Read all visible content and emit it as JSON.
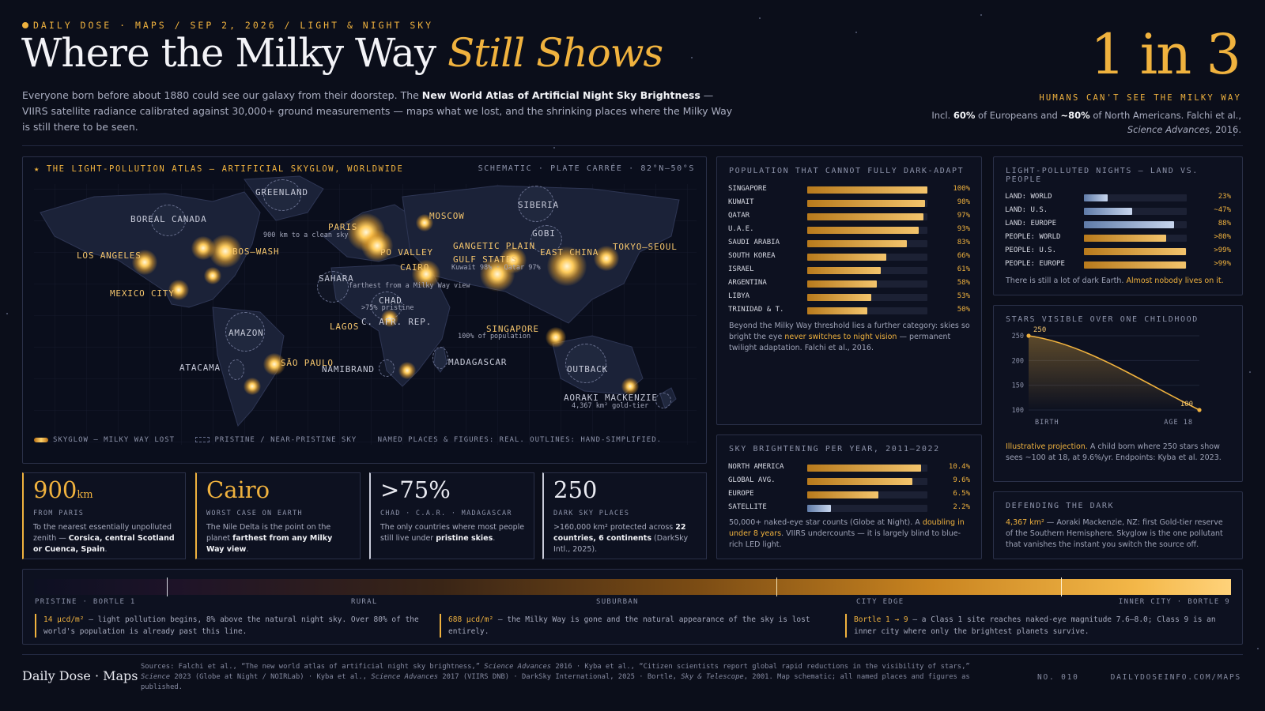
{
  "header": {
    "kicker": "DAILY DOSE · MAPS / SEP 2, 2026 / LIGHT & NIGHT SKY",
    "title_main": "Where the Milky Way ",
    "title_accent": "Still Shows",
    "lede_1": "Everyone born before about 1880 could see our galaxy from their doorstep. The ",
    "lede_bold": "New World Atlas of Artificial Night Sky Brightness",
    "lede_2": " — VIIRS satellite radiance calibrated against 30,000+ ground measurements — maps what we lost, and the shrinking places where the Milky Way is still there to be seen."
  },
  "headline_stat": {
    "value": "1 in 3",
    "caption": "HUMANS CAN'T SEE THE MILKY WAY",
    "note_1": "Incl. ",
    "note_p1": "60%",
    "note_2": " of Europeans and ",
    "note_p2": "~80%",
    "note_3": " of North Americans. Falchi et al.,",
    "note_journal": "Science Advances",
    "note_4": ", 2016."
  },
  "map": {
    "title": "★ THE LIGHT-POLLUTION ATLAS — ARTIFICIAL SKYGLOW, WORLDWIDE",
    "projection": "SCHEMATIC · PLATE CARRÉE · 82°N–50°S",
    "labels": {
      "greenland": "GREENLAND",
      "boreal": "BOREAL CANADA",
      "la": "LOS ANGELES",
      "boswash": "BOS–WASH",
      "mexico": "MEXICO CITY",
      "paris": "PARIS",
      "paris_sub": "900 km to a clean sky",
      "moscow": "MOSCOW",
      "siberia": "SIBERIA",
      "gobi": "GOBI",
      "po": "PO VALLEY",
      "cairo": "CAIRO",
      "ganges": "GANGETIC PLAIN",
      "gulf": "GULF STATES",
      "gulf_sub": "Kuwait 98% · Qatar 97%",
      "eastchina": "EAST CHINA",
      "tokyo": "TOKYO–SEOUL",
      "sahara": "SAHARA",
      "sahara_sub": "farthest from a Milky Way view",
      "chad": "CHAD",
      "chad_sub": ">75% pristine",
      "car": "C. AFR. REP.",
      "lagos": "LAGOS",
      "singapore": "SINGAPORE",
      "singapore_sub": "100% of population",
      "amazon": "AMAZON",
      "atacama": "ATACAMA",
      "saopaulo": "SÃO PAULO",
      "namib": "NAMIBRAND",
      "madagascar": "MADAGASCAR",
      "outback": "OUTBACK",
      "aoraki": "AORAKI MACKENZIE",
      "aoraki_sub": "4,367 km² gold-tier"
    },
    "legend_glow": "SKYGLOW — MILKY WAY LOST",
    "legend_pristine": "PRISTINE / NEAR-PRISTINE SKY",
    "legend_note": "NAMED PLACES & FIGURES: REAL. OUTLINES: HAND-SIMPLIFIED."
  },
  "cards": [
    {
      "value": "900",
      "unit": "km",
      "caption": "FROM PARIS",
      "t1": "To the nearest essentially unpolluted zenith — ",
      "b1": "Corsica, central Scotland or Cuenca, Spain",
      "t2": "."
    },
    {
      "value": "Cairo",
      "unit": "",
      "caption": "WORST CASE ON EARTH",
      "t1": "The Nile Delta is the point on the planet ",
      "b1": "farthest from any Milky Way view",
      "t2": "."
    },
    {
      "value": ">75%",
      "unit": "",
      "caption": "CHAD · C.A.R. · MADAGASCAR",
      "t1": "The only countries where most people still live under ",
      "b1": "pristine skies",
      "t2": "."
    },
    {
      "value": "250",
      "unit": "",
      "caption": "DARK SKY PLACES",
      "t1": ">160,000 km² protected across ",
      "b1": "22 countries, 6 continents",
      "t2": " (DarkSky Intl., 2025)."
    }
  ],
  "population": {
    "title": "POPULATION THAT CANNOT FULLY DARK-ADAPT",
    "rows": [
      {
        "label": "SINGAPORE",
        "value": 100,
        "display": "100%"
      },
      {
        "label": "KUWAIT",
        "value": 98,
        "display": "98%"
      },
      {
        "label": "QATAR",
        "value": 97,
        "display": "97%"
      },
      {
        "label": "U.A.E.",
        "value": 93,
        "display": "93%"
      },
      {
        "label": "SAUDI ARABIA",
        "value": 83,
        "display": "83%"
      },
      {
        "label": "SOUTH KOREA",
        "value": 66,
        "display": "66%"
      },
      {
        "label": "ISRAEL",
        "value": 61,
        "display": "61%"
      },
      {
        "label": "ARGENTINA",
        "value": 58,
        "display": "58%"
      },
      {
        "label": "LIBYA",
        "value": 53,
        "display": "53%"
      },
      {
        "label": "TRINIDAD & T.",
        "value": 50,
        "display": "50%"
      }
    ],
    "note_1": "Beyond the Milky Way threshold lies a further category: skies so bright the eye ",
    "note_hl": "never switches to night vision",
    "note_2": " — permanent twilight adaptation. Falchi et al., 2016."
  },
  "land_people": {
    "title": "LIGHT-POLLUTED NIGHTS — LAND VS. PEOPLE",
    "rows": [
      {
        "label": "LAND: WORLD",
        "value": 23,
        "display": "23%",
        "kind": "land"
      },
      {
        "label": "LAND: U.S.",
        "value": 47,
        "display": "~47%",
        "kind": "land"
      },
      {
        "label": "LAND: EUROPE",
        "value": 88,
        "display": "88%",
        "kind": "land"
      },
      {
        "label": "PEOPLE: WORLD",
        "value": 80,
        "display": ">80%",
        "kind": "people"
      },
      {
        "label": "PEOPLE: U.S.",
        "value": 99,
        "display": ">99%",
        "kind": "people"
      },
      {
        "label": "PEOPLE: EUROPE",
        "value": 99,
        "display": ">99%",
        "kind": "people"
      }
    ],
    "note_1": "There is still a lot of dark Earth. ",
    "note_hl": "Almost nobody lives on it."
  },
  "brightening": {
    "title": "SKY BRIGHTENING PER YEAR, 2011–2022",
    "rows": [
      {
        "label": "NORTH AMERICA",
        "value": 10.4,
        "display": "10.4%",
        "kind": "gold"
      },
      {
        "label": "GLOBAL AVG.",
        "value": 9.6,
        "display": "9.6%",
        "kind": "gold"
      },
      {
        "label": "EUROPE",
        "value": 6.5,
        "display": "6.5%",
        "kind": "gold"
      },
      {
        "label": "SATELLITE",
        "value": 2.2,
        "display": "2.2%",
        "kind": "blue"
      }
    ],
    "note_1": "50,000+ naked-eye star counts (Globe at Night). A ",
    "note_hl": "doubling in under 8 years",
    "note_2": ". VIIRS undercounts — it is largely blind to blue-rich LED light."
  },
  "stars": {
    "title": "STARS VISIBLE OVER ONE CHILDHOOD",
    "note_hl": "Illustrative projection.",
    "note_1": " A child born where 250 stars show sees ~100 at 18, at 9.6%/yr. Endpoints: Kyba et al. 2023."
  },
  "chart_data": {
    "type": "line",
    "x": [
      0,
      18
    ],
    "x_labels": [
      "BIRTH",
      "AGE 18"
    ],
    "y_ticks": [
      100,
      150,
      200,
      250
    ],
    "ylim": [
      100,
      250
    ],
    "points": [
      {
        "x": 0,
        "y": 250,
        "label": "250"
      },
      {
        "x": 18,
        "y": 100,
        "label": "100"
      }
    ]
  },
  "defending": {
    "title": "DEFENDING THE DARK",
    "hl": "4,367 km²",
    "text": " — Aoraki Mackenzie, NZ: first Gold-tier reserve of the Southern Hemisphere. Skyglow is the one pollutant that vanishes the instant you switch the source off."
  },
  "scale": {
    "l1": "PRISTINE · BORTLE 1",
    "l2": "RURAL",
    "l3": "SUBURBAN",
    "l4": "CITY EDGE",
    "l5": "INNER CITY · BORTLE 9",
    "f1_hl": "14 µcd/m²",
    "f1": " — light pollution begins, 8% above the natural night sky. Over 80% of the world's population is already past this line.",
    "f2_hl": "688 µcd/m²",
    "f2": " — the Milky Way is gone and the natural appearance of the sky is lost entirely.",
    "f3_hl": "Bortle 1 → 9",
    "f3": " — a Class 1 site reaches naked-eye magnitude 7.6–8.0; Class 9 is an inner city where only the brightest planets survive."
  },
  "footer": {
    "brand": "Daily Dose · Maps",
    "s1": "Sources: Falchi et al., “The new world atlas of artificial night sky brightness,” ",
    "s1i": "Science Advances",
    "s2": " 2016 · Kyba et al., “Citizen scientists report global rapid reductions in the visibility of stars,” ",
    "s2i": "Science",
    "s3": " 2023 (Globe at Night / NOIRLab) · Kyba et al., ",
    "s3i": "Science Advances",
    "s4": " 2017 (VIIRS DNB) · DarkSky International, 2025 · Bortle, ",
    "s4i": "Sky & Telescope",
    "s5": ", 2001. Map schematic; all named places and figures as published.",
    "issue": "NO. 010",
    "url": "DAILYDOSEINFO.COM/MAPS"
  },
  "colors": {
    "gold": "#f0b23e",
    "blue": "#9cb4d8",
    "bg": "#0b0e1a"
  }
}
